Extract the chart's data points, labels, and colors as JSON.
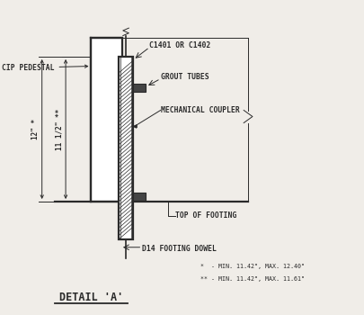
{
  "bg_color": "#f0ede8",
  "line_color": "#2a2a2a",
  "title": "DETAIL 'A'",
  "labels": {
    "cip_pedestal": "CIP PEDESTAL",
    "c1401": "C1401 OR C1402",
    "grout_tubes": "GROUT TUBES",
    "mechanical_coupler": "MECHANICAL COUPLER",
    "top_of_footing": "TOP OF FOOTING",
    "d14_dowel": "D14 FOOTING DOWEL",
    "dim1": "11 1/2\" **",
    "dim2": "12\" *",
    "note1": "*  - MIN. 11.42\", MAX. 12.40\"",
    "note2": "** - MIN. 11.42\", MAX. 11.61\""
  },
  "figsize": [
    4.06,
    3.5
  ],
  "dpi": 100
}
